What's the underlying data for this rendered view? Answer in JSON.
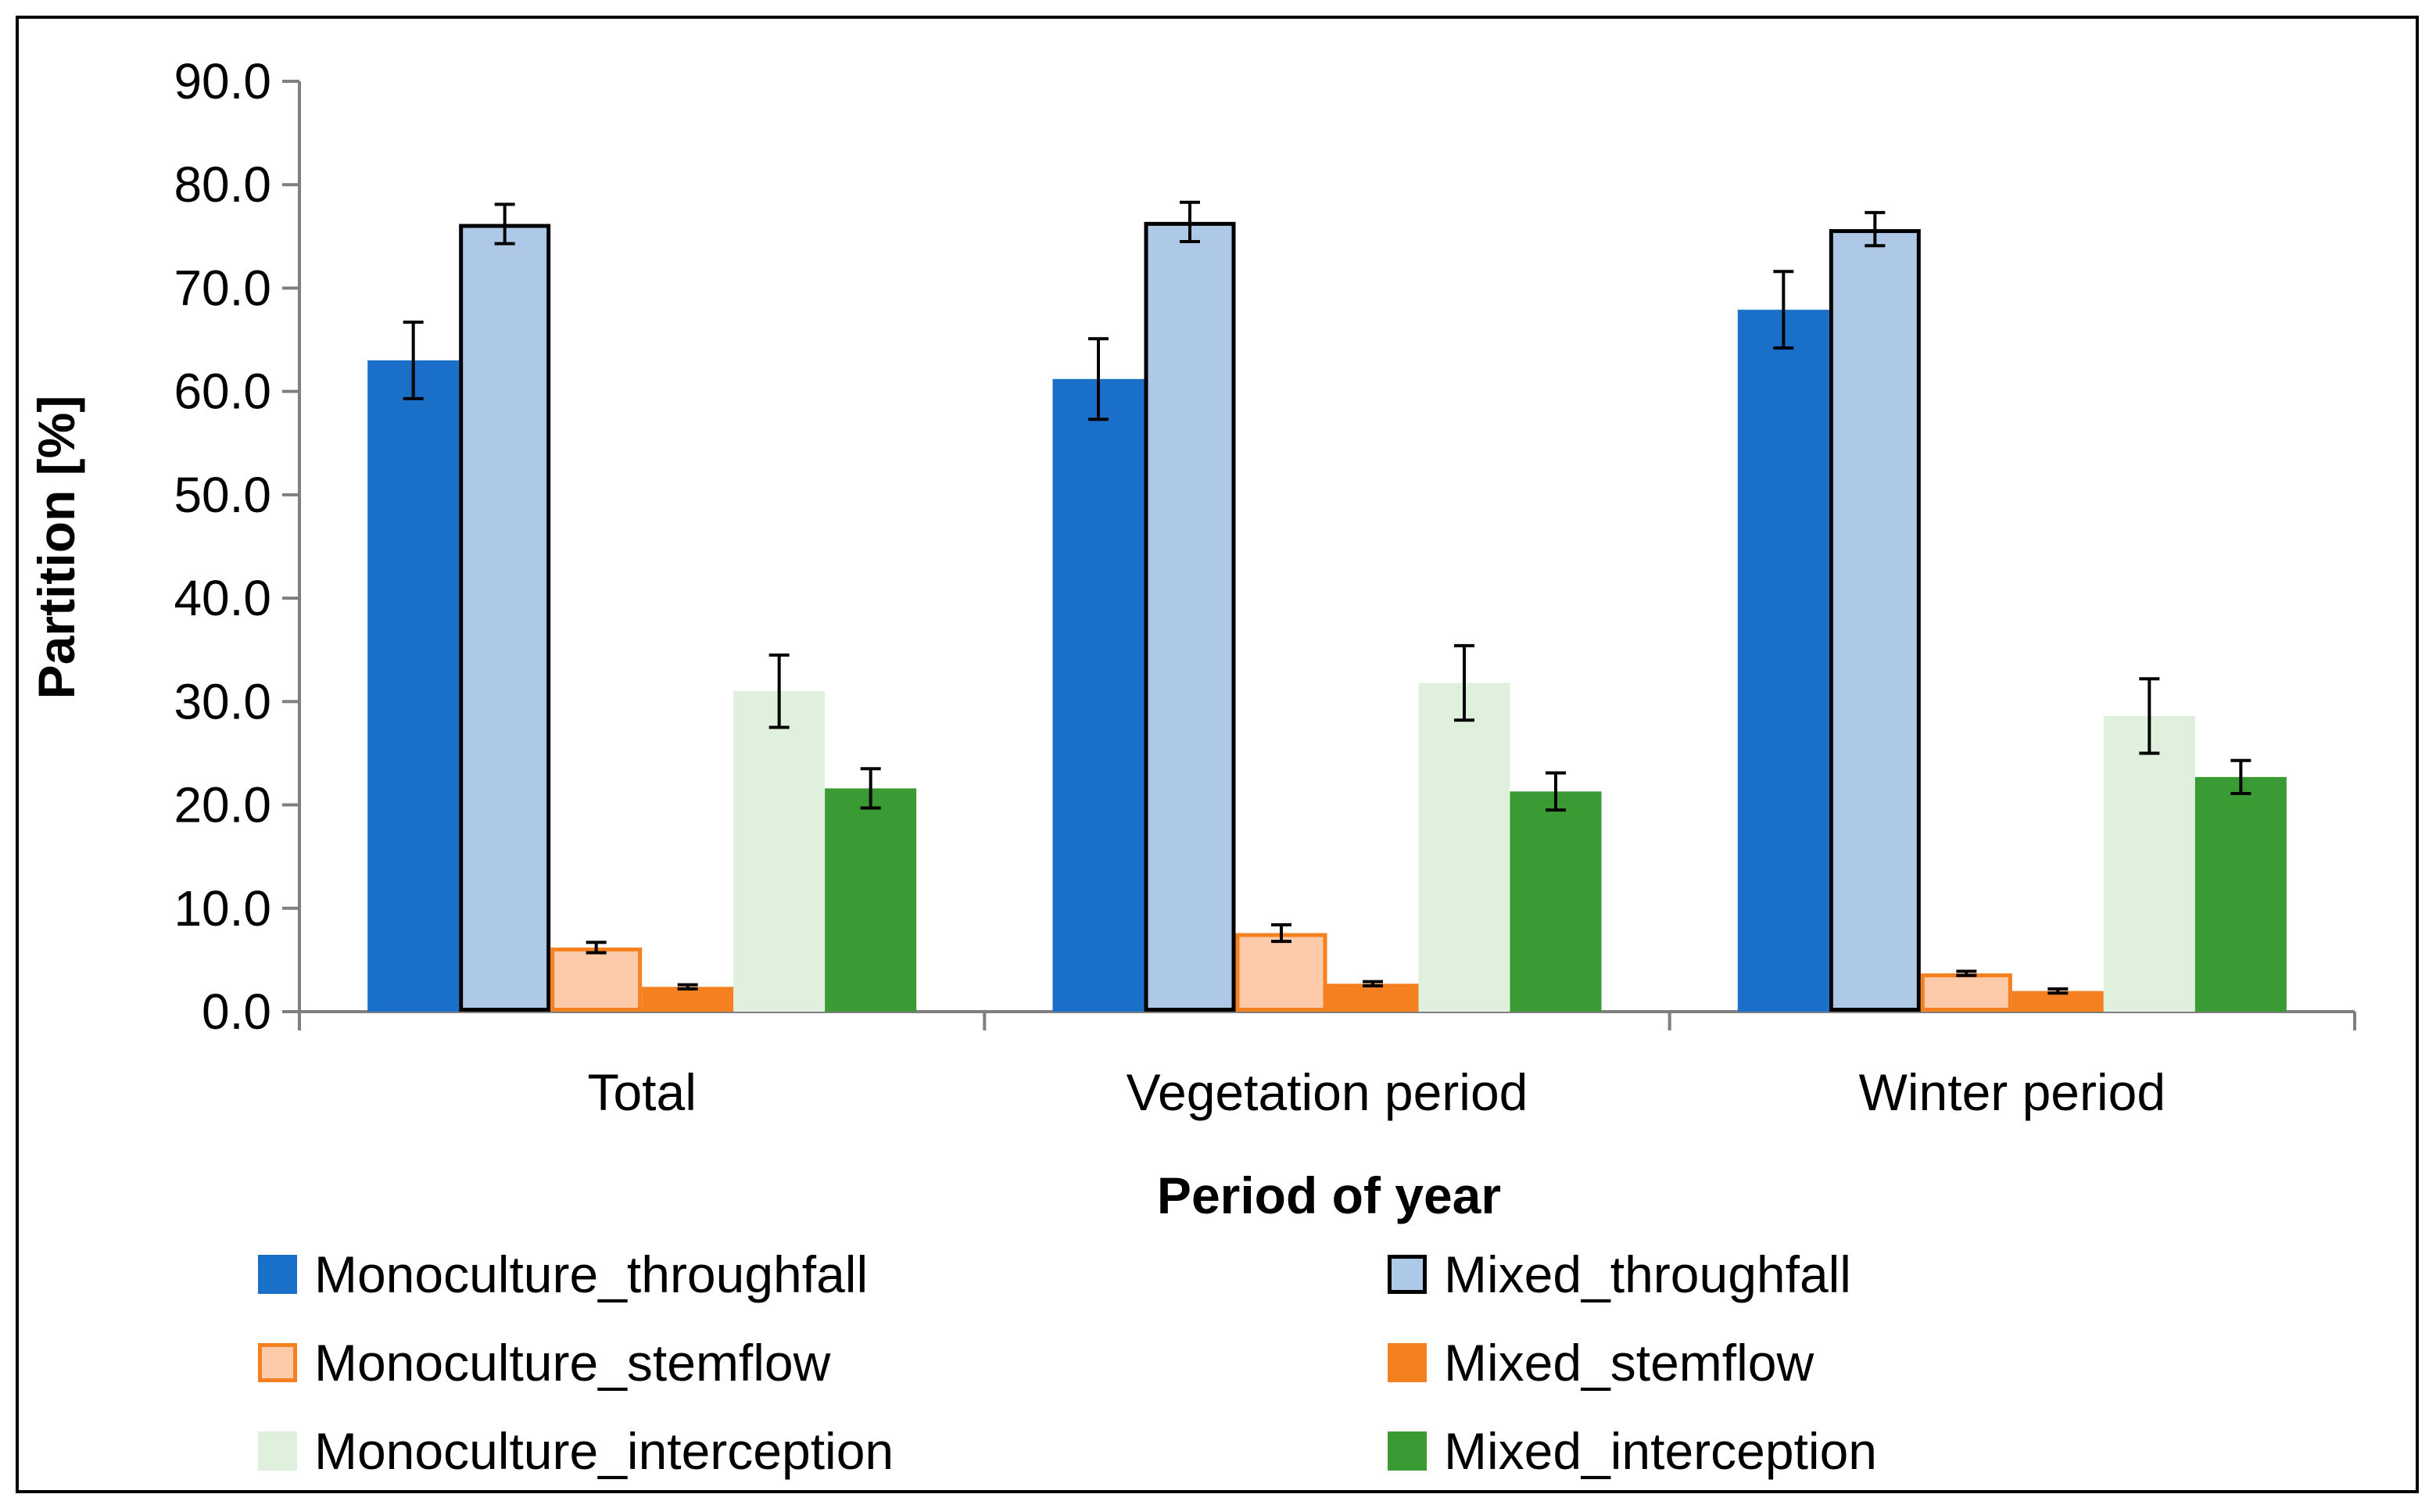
{
  "chart_data": {
    "type": "bar",
    "title": "",
    "xlabel": "Period of year",
    "ylabel": "Partition [%]",
    "ylim": [
      0,
      90
    ],
    "ytick_step": 10,
    "ytick_labels": [
      "0.0",
      "10.0",
      "20.0",
      "30.0",
      "40.0",
      "50.0",
      "60.0",
      "70.0",
      "80.0",
      "90.0"
    ],
    "grid": false,
    "legend_position": "bottom",
    "categories": [
      "Total",
      "Vegetation period",
      "Winter period"
    ],
    "series": [
      {
        "name": "Monoculture_throughfall",
        "fill": "#1a6fc9",
        "stroke": "none",
        "values": [
          63.0,
          61.2,
          67.9
        ],
        "errors": [
          3.7,
          3.9,
          3.7
        ]
      },
      {
        "name": "Mixed_throughfall",
        "fill": "#aec8e8",
        "stroke": "#000000",
        "values": [
          76.2,
          76.4,
          75.7
        ],
        "errors": [
          1.9,
          1.9,
          1.6
        ]
      },
      {
        "name": "Monoculture_stemflow",
        "fill": "#fdcbaa",
        "stroke": "#f4801f",
        "values": [
          6.2,
          7.6,
          3.7
        ],
        "errors": [
          0.5,
          0.8,
          0.2
        ]
      },
      {
        "name": "Mixed_stemflow",
        "fill": "#f4801f",
        "stroke": "none",
        "values": [
          2.4,
          2.7,
          2.0
        ],
        "errors": [
          0.2,
          0.2,
          0.2
        ]
      },
      {
        "name": "Monoculture_interception",
        "fill": "#dff0dc",
        "stroke": "none",
        "values": [
          31.0,
          31.8,
          28.6
        ],
        "errors": [
          3.5,
          3.6,
          3.6
        ]
      },
      {
        "name": "Mixed_interception",
        "fill": "#3a9a34",
        "stroke": "none",
        "values": [
          21.6,
          21.3,
          22.7
        ],
        "errors": [
          1.9,
          1.8,
          1.6
        ]
      }
    ]
  }
}
